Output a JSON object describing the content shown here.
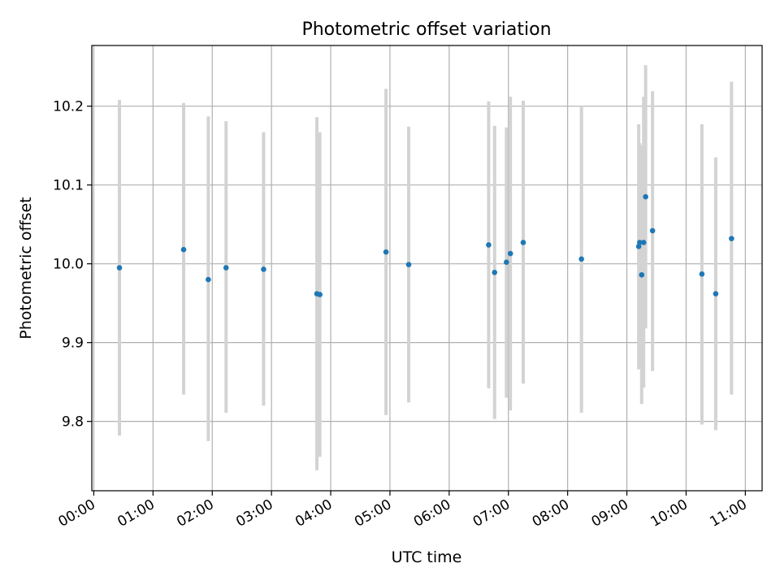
{
  "chart_data": {
    "type": "scatter",
    "title": "Photometric offset variation",
    "xlabel": "UTC time",
    "ylabel": "Photometric offset",
    "x_ticks": [
      "00:00",
      "01:00",
      "02:00",
      "03:00",
      "04:00",
      "05:00",
      "06:00",
      "07:00",
      "08:00",
      "09:00",
      "10:00",
      "11:00"
    ],
    "y_ticks": [
      "9.8",
      "9.9",
      "10.0",
      "10.1",
      "10.2"
    ],
    "xlim": [
      "-00:02",
      "11:17"
    ],
    "ylim": [
      9.712,
      10.277
    ],
    "grid": true,
    "colors": {
      "marker": "#1f77b4",
      "errorbar": "#d3d3d3",
      "grid": "#b0b0b0"
    },
    "points": [
      {
        "t": "00:26",
        "y": 9.995,
        "lo": 9.782,
        "hi": 10.208
      },
      {
        "t": "01:31",
        "y": 10.018,
        "lo": 9.834,
        "hi": 10.204
      },
      {
        "t": "01:56",
        "y": 9.98,
        "lo": 9.775,
        "hi": 10.187
      },
      {
        "t": "02:14",
        "y": 9.995,
        "lo": 9.811,
        "hi": 10.181
      },
      {
        "t": "02:52",
        "y": 9.993,
        "lo": 9.82,
        "hi": 10.167
      },
      {
        "t": "03:46",
        "y": 9.962,
        "lo": 9.738,
        "hi": 10.186
      },
      {
        "t": "03:49",
        "y": 9.961,
        "lo": 9.755,
        "hi": 10.167
      },
      {
        "t": "04:56",
        "y": 10.015,
        "lo": 9.808,
        "hi": 10.222
      },
      {
        "t": "05:19",
        "y": 9.999,
        "lo": 9.824,
        "hi": 10.174
      },
      {
        "t": "06:40",
        "y": 10.024,
        "lo": 9.842,
        "hi": 10.206
      },
      {
        "t": "06:46",
        "y": 9.989,
        "lo": 9.803,
        "hi": 10.175
      },
      {
        "t": "06:58",
        "y": 10.002,
        "lo": 9.83,
        "hi": 10.173
      },
      {
        "t": "07:02",
        "y": 10.013,
        "lo": 9.814,
        "hi": 10.212
      },
      {
        "t": "07:15",
        "y": 10.027,
        "lo": 9.848,
        "hi": 10.207
      },
      {
        "t": "08:14",
        "y": 10.006,
        "lo": 9.811,
        "hi": 10.2
      },
      {
        "t": "09:12",
        "y": 10.022,
        "lo": 9.866,
        "hi": 10.177
      },
      {
        "t": "09:13",
        "y": 10.027,
        "lo": 9.901,
        "hi": 10.153
      },
      {
        "t": "09:15",
        "y": 9.986,
        "lo": 9.822,
        "hi": 10.15
      },
      {
        "t": "09:17",
        "y": 10.027,
        "lo": 9.843,
        "hi": 10.212
      },
      {
        "t": "09:19",
        "y": 10.085,
        "lo": 9.918,
        "hi": 10.252
      },
      {
        "t": "09:26",
        "y": 10.042,
        "lo": 9.864,
        "hi": 10.219
      },
      {
        "t": "10:16",
        "y": 9.987,
        "lo": 9.796,
        "hi": 10.177
      },
      {
        "t": "10:30",
        "y": 9.962,
        "lo": 9.789,
        "hi": 10.135
      },
      {
        "t": "10:46",
        "y": 10.032,
        "lo": 9.834,
        "hi": 10.231
      }
    ]
  }
}
